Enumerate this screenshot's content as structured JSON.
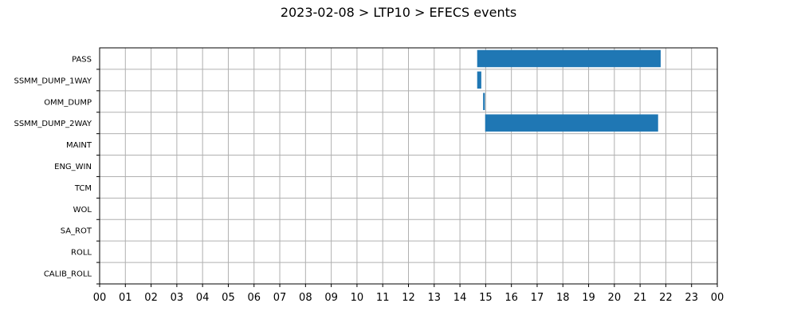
{
  "chart_data": {
    "type": "bar",
    "orientation": "horizontal",
    "title": "2023-02-08 > LTP10 > EFECS events",
    "xlabel": "",
    "ylabel": "",
    "xlim": [
      0,
      24
    ],
    "grid": true,
    "bar_color": "#1f77b4",
    "categories": [
      "PASS",
      "SSMM_DUMP_1WAY",
      "OMM_DUMP",
      "SSMM_DUMP_2WAY",
      "MAINT",
      "ENG_WIN",
      "TCM",
      "WOL",
      "SA_ROT",
      "ROLL",
      "CALIB_ROLL"
    ],
    "x_tick_labels": [
      "00",
      "01",
      "02",
      "03",
      "04",
      "05",
      "06",
      "07",
      "08",
      "09",
      "10",
      "11",
      "12",
      "13",
      "14",
      "15",
      "16",
      "17",
      "18",
      "19",
      "20",
      "21",
      "22",
      "23",
      "00"
    ],
    "events": [
      {
        "category": "PASS",
        "start": 14.67,
        "end": 21.8
      },
      {
        "category": "SSMM_DUMP_1WAY",
        "start": 14.67,
        "end": 14.83
      },
      {
        "category": "OMM_DUMP",
        "start": 14.9,
        "end": 14.97
      },
      {
        "category": "SSMM_DUMP_2WAY",
        "start": 14.98,
        "end": 21.7
      }
    ]
  }
}
